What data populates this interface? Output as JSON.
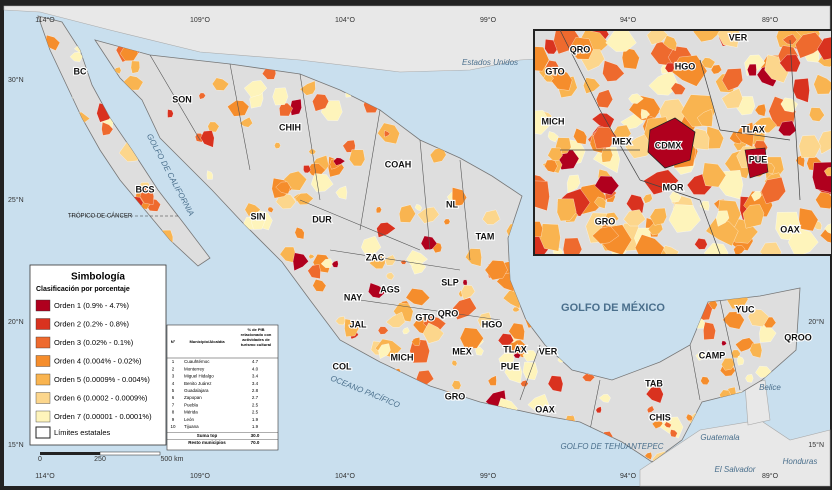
{
  "state_labels": [
    "BC",
    "SON",
    "CHIH",
    "COAH",
    "BCS",
    "SIN",
    "DUR",
    "NL",
    "TAM",
    "ZAC",
    "SLP",
    "AGS",
    "NAY",
    "JAL",
    "GTO",
    "QRO",
    "HGO",
    "MEX",
    "TLAX",
    "VER",
    "MICH",
    "COL",
    "PUE",
    "GRO",
    "OAX",
    "CHIS",
    "TAB",
    "CAMP",
    "YUC",
    "QROO"
  ],
  "inset_labels": [
    "QRO",
    "GTO",
    "HGO",
    "VER",
    "MICH",
    "MEX",
    "CDMX",
    "TLAX",
    "PUE",
    "MOR",
    "GRO",
    "OAX"
  ],
  "geo_labels": [
    "Estados Unidos",
    "GOLFO DE CALIFORNIA",
    "GOLFO DE MÉXICO",
    "OCEANO PACÍFICO",
    "GOLFO DE TEHUANTEPEC",
    "TRÓPICO DE CÁNCER",
    "Guatemala",
    "Honduras",
    "El Salvador",
    "Belice"
  ],
  "lon_labels": [
    "114°O",
    "109°O",
    "104°O",
    "99°O",
    "94°O",
    "89°O"
  ],
  "lat_labels": [
    "30°N",
    "25°N",
    "20°N",
    "15°N"
  ],
  "scale": [
    "0",
    "250",
    "500 km"
  ],
  "legend": {
    "title": "Simbología",
    "subtitle": "Clasificación por porcentaje",
    "items": [
      {
        "label": "Orden 1 (0.9% - 4.7%)",
        "color": "#b0001e"
      },
      {
        "label": "Orden 2 (0.2% - 0.8%)",
        "color": "#d9321f"
      },
      {
        "label": "Orden 3 (0.02% - 0.1%)",
        "color": "#ee6a2e"
      },
      {
        "label": "Orden 4 (0.004% - 0.02%)",
        "color": "#f58d2c"
      },
      {
        "label": "Orden 5 (0.0009% - 0.004%)",
        "color": "#f9b450"
      },
      {
        "label": "Orden 6 (0.0002 - 0.0009%)",
        "color": "#fcd68c"
      },
      {
        "label": "Orden 7 (0.00001 - 0.0001%)",
        "color": "#fef4bb"
      }
    ],
    "boundary": "Límites estatales"
  },
  "table": {
    "headers": [
      "N°",
      "Municipio/Alcaldía",
      "% de PIB relacionado con actividades de turismo cultural"
    ],
    "rows": [
      [
        "1",
        "Cuauhtémoc",
        "4.7"
      ],
      [
        "2",
        "Monterrey",
        "4.0"
      ],
      [
        "3",
        "Miguel Hidalgo",
        "3.4"
      ],
      [
        "4",
        "Benito Juárez",
        "3.4"
      ],
      [
        "5",
        "Guadalajara",
        "2.8"
      ],
      [
        "6",
        "Zapopan",
        "2.7"
      ],
      [
        "7",
        "Puebla",
        "2.5"
      ],
      [
        "8",
        "Mérida",
        "2.5"
      ],
      [
        "9",
        "León",
        "1.9"
      ],
      [
        "10",
        "Tijuana",
        "1.9"
      ]
    ],
    "totals": [
      [
        "Suma top",
        "30.0"
      ],
      [
        "Resto municipios",
        "70.0"
      ]
    ]
  }
}
